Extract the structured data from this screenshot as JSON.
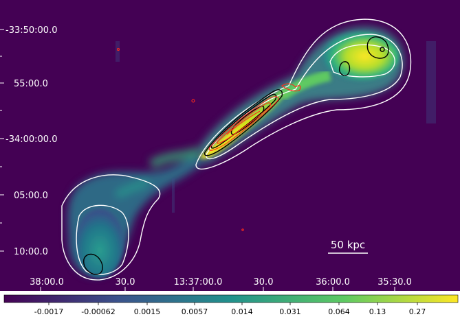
{
  "figure": {
    "y_ticks": [
      "-33:50:00.0",
      "55:00.0",
      "-34:00:00.0",
      "05:00.0",
      "10:00.0"
    ],
    "x_ticks": [
      "38:00.0",
      "30.0",
      "13:37:00.0",
      "30.0",
      "36:00.0",
      "35:30.0"
    ],
    "scale_bar_label": "50 kpc",
    "colorbar_ticks": [
      "-0.0017",
      "-0.00062",
      "0.0015",
      "0.0057",
      "0.014",
      "0.031",
      "0.064",
      "0.13",
      "0.27"
    ],
    "colormap": [
      "#440154",
      "#3b528b",
      "#21918c",
      "#5ec962",
      "#fde725"
    ],
    "contour_colors": {
      "outer": "#ffffff",
      "inner": "#000000",
      "overlay": "#ff2a1a"
    }
  }
}
